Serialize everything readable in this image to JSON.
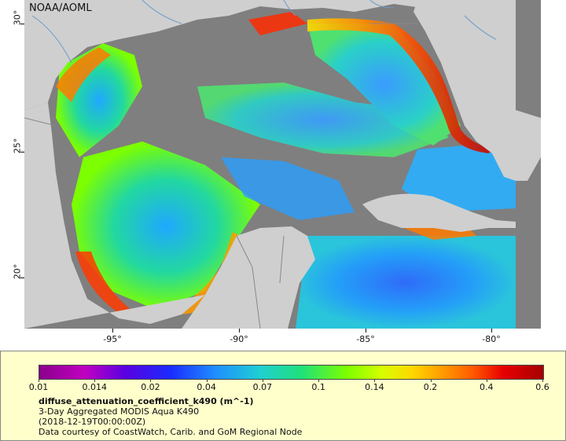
{
  "map": {
    "credit": "NOAA/AOML",
    "latitude_ticks": [
      "30°",
      "25°",
      "20°"
    ],
    "longitude_ticks": [
      "-95°",
      "-90°",
      "-85°",
      "-80°"
    ]
  },
  "legend": {
    "scale_labels": [
      "0.01",
      "0.014",
      "0.02",
      "0.04",
      "0.07",
      "0.1",
      "0.14",
      "0.2",
      "0.4",
      "0.6"
    ],
    "variable": "diffuse_attenuation_coefficient_k490 (m^-1)",
    "dataset": "3-Day Aggregated MODIS Aqua K490",
    "time": "(2018-12-19T00:00:00Z)",
    "source": "Data courtesy of CoastWatch, Carib. and GoM Regional Node"
  },
  "colors": {
    "land": "#cfcfcf",
    "no_data": "#7f7f7f",
    "legend_background": "#ffffcc",
    "borders": "#888888",
    "rivers": "#6a9acb"
  }
}
